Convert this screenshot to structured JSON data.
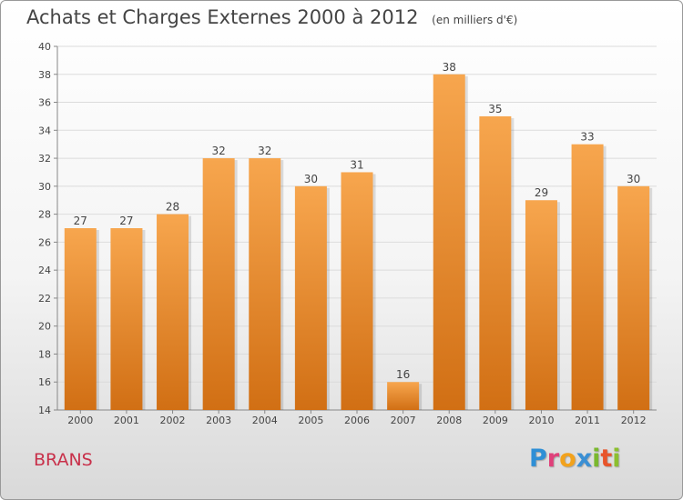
{
  "chart_data": {
    "type": "bar",
    "title": "Achats et Charges Externes 2000 à 2012",
    "subtitle": "(en milliers d'€)",
    "categories": [
      "2000",
      "2001",
      "2002",
      "2003",
      "2004",
      "2005",
      "2006",
      "2007",
      "2008",
      "2009",
      "2010",
      "2011",
      "2012"
    ],
    "values": [
      27,
      27,
      28,
      32,
      32,
      30,
      31,
      16,
      38,
      35,
      29,
      33,
      30
    ],
    "ylim": [
      14,
      40
    ],
    "yticks": [
      14,
      16,
      18,
      20,
      22,
      24,
      26,
      28,
      30,
      32,
      34,
      36,
      38,
      40
    ],
    "grid": true,
    "bar_color_top": "#f7a64e",
    "bar_color_bottom": "#d16f14"
  },
  "footer": {
    "commune": "BRANS",
    "logo_letters": [
      {
        "ch": "P",
        "color": "#2e8fd6"
      },
      {
        "ch": "r",
        "color": "#e0407a"
      },
      {
        "ch": "o",
        "color": "#f2a21c"
      },
      {
        "ch": "x",
        "color": "#3a8fd4"
      },
      {
        "ch": "i",
        "color": "#7ab82e"
      },
      {
        "ch": "t",
        "color": "#e8542a"
      },
      {
        "ch": "i",
        "color": "#8cbf2f"
      }
    ]
  }
}
